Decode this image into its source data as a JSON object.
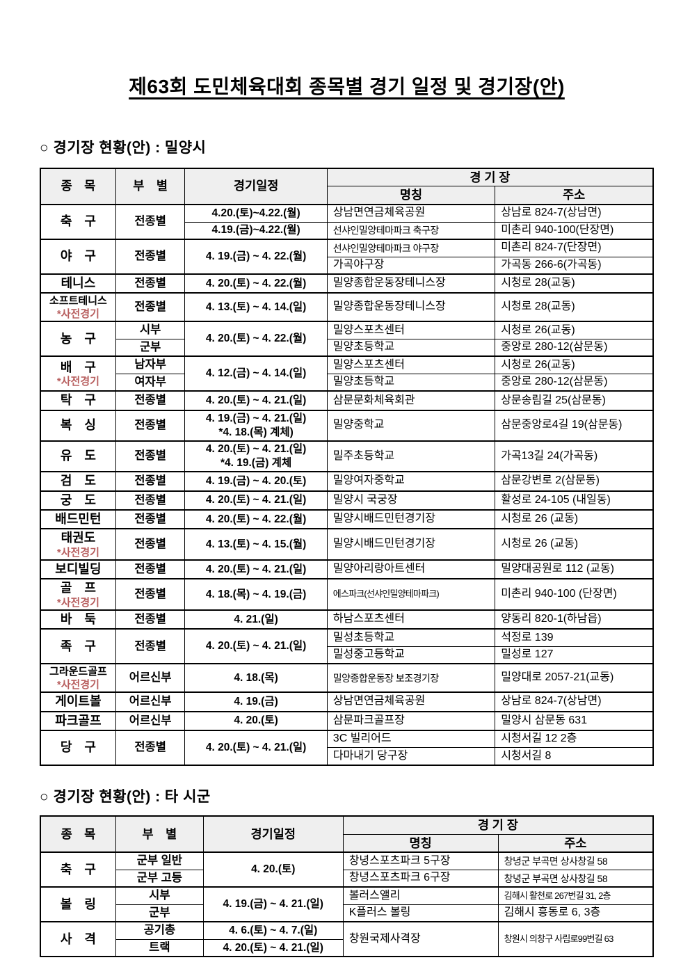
{
  "title": "제63회 도민체육대회 종목별 경기 일정 및 경기장(안)",
  "sections": [
    {
      "heading": "○ 경기장 현황(안) : 밀양시"
    },
    {
      "heading": "○ 경기장 현황(안) : 타 시군"
    }
  ],
  "colors": {
    "pre_event_red": "#b85f5f",
    "header_bg": "#efefef",
    "border": "#000000"
  },
  "tables": [
    {
      "col_widths": [
        "12.3%",
        "11.3%",
        "23.2%",
        "27.4%",
        "25.8%"
      ],
      "header_rows": [
        {
          "c": [
            {
              "t": "종　목",
              "rs": 2,
              "k": "header"
            },
            {
              "t": "부　별",
              "rs": 2,
              "k": "header"
            },
            {
              "t": "경기일정",
              "rs": 2,
              "k": "header"
            },
            {
              "t": "경 기 장",
              "cs": 2,
              "k": "header"
            }
          ]
        },
        {
          "c": [
            {
              "t": "명칭",
              "k": "header"
            },
            {
              "t": "주소",
              "k": "header"
            }
          ]
        }
      ],
      "rows": [
        {
          "g": 1,
          "c": [
            {
              "t": "축　구",
              "rs": 2,
              "k": "sport"
            },
            {
              "t": "전종별",
              "rs": 2,
              "k": "division"
            },
            {
              "t": "4.20.(토)~4.22.(월)",
              "k": "schedule"
            },
            {
              "t": "상남면연금체육공원",
              "k": "venue"
            },
            {
              "t": "상남로 824-7(상남면)",
              "k": "address"
            }
          ]
        },
        {
          "c": [
            {
              "t": "4.19.(금)~4.22.(월)",
              "k": "schedule"
            },
            {
              "t": "선샤인밀양테마파크 축구장",
              "k": "venue",
              "sq": 1
            },
            {
              "t": "미촌리 940-100(단장면)",
              "k": "address"
            }
          ]
        },
        {
          "g": 1,
          "c": [
            {
              "t": "야　구",
              "rs": 2,
              "k": "sport"
            },
            {
              "t": "전종별",
              "rs": 2,
              "k": "division"
            },
            {
              "t": "4. 19.(금) ~ 4. 22.(월)",
              "rs": 2,
              "k": "schedule"
            },
            {
              "t": "선샤인밀양테마파크 야구장",
              "k": "venue",
              "sq": 1
            },
            {
              "t": "미촌리 824-7(단장면)",
              "k": "address"
            }
          ]
        },
        {
          "c": [
            {
              "t": "가곡야구장",
              "k": "venue"
            },
            {
              "t": "가곡동 266-6(가곡동)",
              "k": "address"
            }
          ]
        },
        {
          "g": 1,
          "c": [
            {
              "t": "테니스",
              "k": "sport"
            },
            {
              "t": "전종별",
              "k": "division"
            },
            {
              "t": "4. 20.(토) ~ 4. 22.(월)",
              "k": "schedule"
            },
            {
              "t": "밀양종합운동장테니스장",
              "k": "venue"
            },
            {
              "t": "시청로 28(교동)",
              "k": "address"
            }
          ]
        },
        {
          "g": 1,
          "c": [
            {
              "t": "소프트테니스",
              "red": "*사전경기",
              "k": "sport",
              "sm": 1
            },
            {
              "t": "전종별",
              "k": "division"
            },
            {
              "t": "4. 13.(토) ~ 4. 14.(일)",
              "k": "schedule"
            },
            {
              "t": "밀양종합운동장테니스장",
              "k": "venue"
            },
            {
              "t": "시청로 28(교동)",
              "k": "address"
            }
          ]
        },
        {
          "g": 1,
          "c": [
            {
              "t": "농　구",
              "rs": 2,
              "k": "sport"
            },
            {
              "t": "시부",
              "k": "division"
            },
            {
              "t": "4. 20.(토) ~ 4. 22.(월)",
              "rs": 2,
              "k": "schedule"
            },
            {
              "t": "밀양스포츠센터",
              "k": "venue"
            },
            {
              "t": "시청로 26(교동)",
              "k": "address"
            }
          ]
        },
        {
          "c": [
            {
              "t": "군부",
              "k": "division"
            },
            {
              "t": "밀양초등학교",
              "k": "venue"
            },
            {
              "t": "중앙로 280-12(삼문동)",
              "k": "address"
            }
          ]
        },
        {
          "g": 1,
          "c": [
            {
              "t": "배　구",
              "red": "*사전경기",
              "rs": 2,
              "k": "sport"
            },
            {
              "t": "남자부",
              "k": "division"
            },
            {
              "t": "4. 12.(금) ~ 4. 14.(일)",
              "rs": 2,
              "k": "schedule"
            },
            {
              "t": "밀양스포츠센터",
              "k": "venue"
            },
            {
              "t": "시청로 26(교동)",
              "k": "address"
            }
          ]
        },
        {
          "c": [
            {
              "t": "여자부",
              "k": "division"
            },
            {
              "t": "밀양초등학교",
              "k": "venue"
            },
            {
              "t": "중앙로 280-12(삼문동)",
              "k": "address"
            }
          ]
        },
        {
          "g": 1,
          "c": [
            {
              "t": "탁　구",
              "k": "sport"
            },
            {
              "t": "전종별",
              "k": "division"
            },
            {
              "t": "4. 20.(토) ~ 4. 21.(일)",
              "k": "schedule"
            },
            {
              "t": "삼문문화체육회관",
              "k": "venue"
            },
            {
              "t": "상문송림길 25(삼문동)",
              "k": "address"
            }
          ]
        },
        {
          "g": 1,
          "c": [
            {
              "t": "복　싱",
              "k": "sport"
            },
            {
              "t": "전종별",
              "k": "division"
            },
            {
              "t": "4. 19.(금) ~ 4. 21.(일)\n*4. 18.(목) 계체)",
              "k": "schedule"
            },
            {
              "t": "밀양중학교",
              "k": "venue"
            },
            {
              "t": "삼문중앙로4길 19(삼문동)",
              "k": "address"
            }
          ]
        },
        {
          "g": 1,
          "c": [
            {
              "t": "유　도",
              "k": "sport"
            },
            {
              "t": "전종별",
              "k": "division"
            },
            {
              "t": "4. 20.(토) ~ 4. 21.(일)\n*4. 19.(금) 계체",
              "k": "schedule"
            },
            {
              "t": "밀주초등학교",
              "k": "venue"
            },
            {
              "t": "가곡13길 24(가곡동)",
              "k": "address"
            }
          ]
        },
        {
          "g": 1,
          "c": [
            {
              "t": "검　도",
              "k": "sport"
            },
            {
              "t": "전종별",
              "k": "division"
            },
            {
              "t": "4. 19.(금) ~ 4. 20.(토)",
              "k": "schedule"
            },
            {
              "t": "밀양여자중학교",
              "k": "venue"
            },
            {
              "t": "삼문강변로 2(삼문동)",
              "k": "address"
            }
          ]
        },
        {
          "g": 1,
          "c": [
            {
              "t": "궁　도",
              "k": "sport"
            },
            {
              "t": "전종별",
              "k": "division"
            },
            {
              "t": "4. 20.(토) ~ 4. 21.(일)",
              "k": "schedule"
            },
            {
              "t": "밀양시 국궁장",
              "k": "venue"
            },
            {
              "t": "활성로 24-105 (내일동)",
              "k": "address"
            }
          ]
        },
        {
          "g": 1,
          "c": [
            {
              "t": "배드민턴",
              "k": "sport"
            },
            {
              "t": "전종별",
              "k": "division"
            },
            {
              "t": "4. 20.(토) ~ 4. 22.(월)",
              "k": "schedule"
            },
            {
              "t": "밀양시배드민턴경기장",
              "k": "venue"
            },
            {
              "t": "시청로 26 (교동)",
              "k": "address"
            }
          ]
        },
        {
          "g": 1,
          "c": [
            {
              "t": "태권도",
              "red": "*사전경기",
              "k": "sport"
            },
            {
              "t": "전종별",
              "k": "division"
            },
            {
              "t": "4. 13.(토) ~ 4. 15.(월)",
              "k": "schedule"
            },
            {
              "t": "밀양시배드민턴경기장",
              "k": "venue"
            },
            {
              "t": "시청로 26 (교동)",
              "k": "address"
            }
          ]
        },
        {
          "g": 1,
          "c": [
            {
              "t": "보디빌딩",
              "k": "sport"
            },
            {
              "t": "전종별",
              "k": "division"
            },
            {
              "t": "4. 20.(토) ~ 4. 21.(일)",
              "k": "schedule"
            },
            {
              "t": "밀양아리랑아트센터",
              "k": "venue"
            },
            {
              "t": "밀양대공원로 112 (교동)",
              "k": "address"
            }
          ]
        },
        {
          "g": 1,
          "c": [
            {
              "t": "골　프",
              "red": "*사전경기",
              "k": "sport"
            },
            {
              "t": "전종별",
              "k": "division"
            },
            {
              "t": "4. 18.(목) ~ 4. 19.(금)",
              "k": "schedule"
            },
            {
              "t": "에스파크(선샤인밀양테마파크)",
              "k": "venue",
              "sq": 2
            },
            {
              "t": "미촌리 940-100 (단장면)",
              "k": "address"
            }
          ]
        },
        {
          "g": 1,
          "c": [
            {
              "t": "바　둑",
              "k": "sport"
            },
            {
              "t": "전종별",
              "k": "division"
            },
            {
              "t": "4. 21.(일)",
              "k": "schedule"
            },
            {
              "t": "하남스포츠센터",
              "k": "venue"
            },
            {
              "t": "양동리 820-1(하남읍)",
              "k": "address"
            }
          ]
        },
        {
          "g": 1,
          "c": [
            {
              "t": "족　구",
              "rs": 2,
              "k": "sport"
            },
            {
              "t": "전종별",
              "rs": 2,
              "k": "division"
            },
            {
              "t": "4. 20.(토) ~ 4. 21.(일)",
              "rs": 2,
              "k": "schedule"
            },
            {
              "t": "밀성초등학교",
              "k": "venue"
            },
            {
              "t": "석정로 139",
              "k": "address"
            }
          ]
        },
        {
          "c": [
            {
              "t": "밀성중고등학교",
              "k": "venue"
            },
            {
              "t": "밀성로 127",
              "k": "address"
            }
          ]
        },
        {
          "g": 1,
          "c": [
            {
              "t": "그라운드골프",
              "red": "*사전경기",
              "k": "sport",
              "sm": 1
            },
            {
              "t": "어르신부",
              "k": "division"
            },
            {
              "t": "4. 18.(목)",
              "k": "schedule"
            },
            {
              "t": "밀양종합운동장 보조경기장",
              "k": "venue",
              "sq": 1
            },
            {
              "t": "밀양대로 2057-21(교동)",
              "k": "address"
            }
          ]
        },
        {
          "g": 1,
          "c": [
            {
              "t": "게이트볼",
              "k": "sport"
            },
            {
              "t": "어르신부",
              "k": "division"
            },
            {
              "t": "4. 19.(금)",
              "k": "schedule"
            },
            {
              "t": "상남면연금체육공원",
              "k": "venue"
            },
            {
              "t": "상남로 824-7(상남면)",
              "k": "address"
            }
          ]
        },
        {
          "g": 1,
          "c": [
            {
              "t": "파크골프",
              "k": "sport"
            },
            {
              "t": "어르신부",
              "k": "division"
            },
            {
              "t": "4. 20.(토)",
              "k": "schedule"
            },
            {
              "t": "삼문파크골프장",
              "k": "venue"
            },
            {
              "t": "밀양시 삼문동 631",
              "k": "address"
            }
          ]
        },
        {
          "g": 1,
          "c": [
            {
              "t": "당　구",
              "rs": 2,
              "k": "sport"
            },
            {
              "t": "전종별",
              "rs": 2,
              "k": "division"
            },
            {
              "t": "4. 20.(토) ~ 4. 21.(일)",
              "rs": 2,
              "k": "schedule"
            },
            {
              "t": "3C 빌리어드",
              "k": "venue"
            },
            {
              "t": "시청서길 12 2층",
              "k": "address"
            }
          ]
        },
        {
          "c": [
            {
              "t": "다마내기 당구장",
              "k": "venue"
            },
            {
              "t": "시청서길 8",
              "k": "address"
            }
          ]
        }
      ]
    },
    {
      "col_widths": [
        "12.3%",
        "14.3%",
        "22.8%",
        "25.3%",
        "25.3%"
      ],
      "header_rows": [
        {
          "c": [
            {
              "t": "종　목",
              "rs": 2,
              "k": "header"
            },
            {
              "t": "부　별",
              "rs": 2,
              "k": "header"
            },
            {
              "t": "경기일정",
              "rs": 2,
              "k": "header"
            },
            {
              "t": "경 기 장",
              "cs": 2,
              "k": "header"
            }
          ]
        },
        {
          "c": [
            {
              "t": "명칭",
              "k": "header"
            },
            {
              "t": "주소",
              "k": "header"
            }
          ]
        }
      ],
      "rows": [
        {
          "g": 1,
          "c": [
            {
              "t": "축　구",
              "rs": 2,
              "k": "sport"
            },
            {
              "t": "군부 일반",
              "k": "division"
            },
            {
              "t": "4. 20.(토)",
              "rs": 2,
              "k": "schedule"
            },
            {
              "t": "창녕스포츠파크 5구장",
              "k": "venue"
            },
            {
              "t": "창녕군 부곡면 상사창길 58",
              "k": "address",
              "sq": 1
            }
          ]
        },
        {
          "c": [
            {
              "t": "군부 고등",
              "k": "division"
            },
            {
              "t": "창녕스포츠파크 6구장",
              "k": "venue"
            },
            {
              "t": "창녕군 부곡면 상사창길 58",
              "k": "address",
              "sq": 1
            }
          ]
        },
        {
          "g": 1,
          "c": [
            {
              "t": "볼　링",
              "rs": 2,
              "k": "sport"
            },
            {
              "t": "시부",
              "k": "division"
            },
            {
              "t": "4. 19.(금) ~ 4. 21.(일)",
              "rs": 2,
              "k": "schedule"
            },
            {
              "t": "볼러스앨리",
              "k": "venue"
            },
            {
              "t": "김해시 활천로 267번길 31, 2층",
              "k": "address",
              "sq": 2
            }
          ]
        },
        {
          "c": [
            {
              "t": "군부",
              "k": "division"
            },
            {
              "t": "K플러스 볼링",
              "k": "venue"
            },
            {
              "t": "김해시 흥동로 6, 3층",
              "k": "address"
            }
          ]
        },
        {
          "g": 1,
          "c": [
            {
              "t": "사　격",
              "rs": 2,
              "k": "sport"
            },
            {
              "t": "공기총",
              "k": "division"
            },
            {
              "t": "4. 6.(토) ~ 4. 7.(일)",
              "k": "schedule"
            },
            {
              "t": "창원국제사격장",
              "rs": 2,
              "k": "venue"
            },
            {
              "t": "창원시 의창구 사림로99번길 63",
              "rs": 2,
              "k": "address",
              "sq": 2
            }
          ]
        },
        {
          "c": [
            {
              "t": "트랙",
              "k": "division"
            },
            {
              "t": "4. 20.(토) ~ 4. 21.(일)",
              "k": "schedule"
            }
          ]
        }
      ]
    }
  ]
}
